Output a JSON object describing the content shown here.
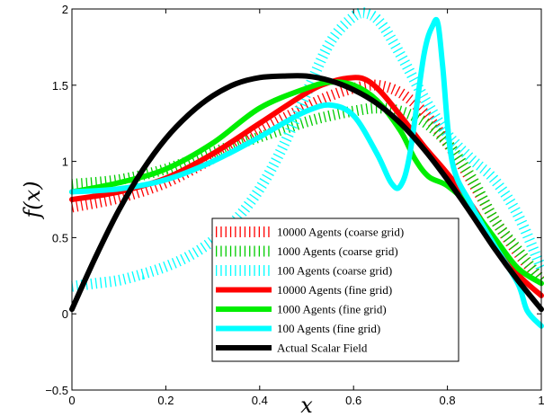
{
  "chart_data": {
    "type": "line",
    "title": "",
    "xlabel": "x",
    "ylabel": "f(x)",
    "xlim": [
      0,
      1
    ],
    "ylim": [
      -0.5,
      2
    ],
    "grid": false,
    "legend_placement": "lower-right",
    "x_ticks": [
      "0",
      "0.2",
      "0.4",
      "0.6",
      "0.8",
      "1"
    ],
    "y_ticks": [
      "−0.5",
      "0",
      "0.5",
      "1",
      "1.5",
      "2"
    ],
    "series": [
      {
        "name": "10000 Agents (coarse grid)",
        "color": "#ff0000",
        "style": "dotted",
        "x": [
          0,
          0.1,
          0.2,
          0.3,
          0.4,
          0.5,
          0.55,
          0.6,
          0.65,
          0.7,
          0.75,
          0.8,
          0.85,
          0.9,
          0.95,
          1.0
        ],
        "y": [
          0.7,
          0.76,
          0.86,
          1.02,
          1.2,
          1.36,
          1.43,
          1.48,
          1.5,
          1.45,
          1.32,
          1.12,
          0.88,
          0.62,
          0.4,
          0.22
        ]
      },
      {
        "name": "1000 Agents (coarse grid)",
        "color": "#00cc00",
        "style": "dotted",
        "x": [
          0,
          0.1,
          0.2,
          0.3,
          0.4,
          0.5,
          0.55,
          0.6,
          0.65,
          0.7,
          0.75,
          0.8,
          0.85,
          0.9,
          0.95,
          1.0
        ],
        "y": [
          0.85,
          0.88,
          0.95,
          1.06,
          1.16,
          1.26,
          1.3,
          1.33,
          1.35,
          1.33,
          1.26,
          1.12,
          0.9,
          0.62,
          0.42,
          0.22
        ]
      },
      {
        "name": "100 Agents (coarse grid)",
        "color": "#00ffff",
        "style": "dotted",
        "x": [
          0,
          0.05,
          0.1,
          0.15,
          0.2,
          0.25,
          0.3,
          0.35,
          0.4,
          0.45,
          0.5,
          0.55,
          0.6,
          0.63,
          0.66,
          0.7,
          0.75,
          0.8,
          0.85,
          0.9,
          0.95,
          1.0
        ],
        "y": [
          0.18,
          0.2,
          0.22,
          0.26,
          0.31,
          0.38,
          0.48,
          0.62,
          0.82,
          1.1,
          1.45,
          1.78,
          1.95,
          1.97,
          1.9,
          1.7,
          1.42,
          1.18,
          1.02,
          0.88,
          0.65,
          0.3
        ]
      },
      {
        "name": "10000 Agents (fine grid)",
        "color": "#ff0000",
        "style": "solid",
        "x": [
          0,
          0.1,
          0.2,
          0.3,
          0.4,
          0.5,
          0.55,
          0.6,
          0.63,
          0.66,
          0.7,
          0.75,
          0.8,
          0.85,
          0.9,
          0.95,
          1.0
        ],
        "y": [
          0.75,
          0.8,
          0.89,
          1.05,
          1.25,
          1.45,
          1.52,
          1.55,
          1.53,
          1.45,
          1.3,
          1.1,
          0.92,
          0.72,
          0.48,
          0.26,
          0.12
        ]
      },
      {
        "name": "1000 Agents (fine grid)",
        "color": "#00ee00",
        "style": "solid",
        "x": [
          0,
          0.1,
          0.2,
          0.3,
          0.4,
          0.5,
          0.55,
          0.6,
          0.65,
          0.7,
          0.73,
          0.76,
          0.8,
          0.85,
          0.9,
          0.95,
          1.0
        ],
        "y": [
          0.8,
          0.86,
          0.95,
          1.12,
          1.35,
          1.48,
          1.52,
          1.5,
          1.4,
          1.2,
          1.02,
          0.9,
          0.84,
          0.7,
          0.5,
          0.3,
          0.2
        ]
      },
      {
        "name": "100 Agents (fine grid)",
        "color": "#00ffff",
        "style": "solid",
        "x": [
          0,
          0.1,
          0.2,
          0.3,
          0.4,
          0.45,
          0.5,
          0.55,
          0.6,
          0.65,
          0.68,
          0.7,
          0.72,
          0.75,
          0.77,
          0.78,
          0.79,
          0.81,
          0.85,
          0.9,
          0.95,
          0.97,
          1.0
        ],
        "y": [
          0.8,
          0.82,
          0.88,
          1.0,
          1.16,
          1.25,
          1.33,
          1.37,
          1.3,
          1.05,
          0.86,
          0.84,
          1.05,
          1.7,
          1.9,
          1.9,
          1.62,
          1.0,
          0.72,
          0.45,
          0.2,
          0.02,
          -0.08
        ]
      },
      {
        "name": "Actual Scalar Field",
        "color": "#000000",
        "style": "solid",
        "x": [
          0,
          0.05,
          0.1,
          0.15,
          0.2,
          0.25,
          0.3,
          0.35,
          0.4,
          0.45,
          0.5,
          0.55,
          0.6,
          0.65,
          0.7,
          0.75,
          0.8,
          0.85,
          0.9,
          0.95,
          1.0
        ],
        "y": [
          0.03,
          0.37,
          0.68,
          0.94,
          1.15,
          1.31,
          1.43,
          1.51,
          1.55,
          1.56,
          1.56,
          1.53,
          1.47,
          1.38,
          1.25,
          1.08,
          0.88,
          0.66,
          0.43,
          0.22,
          0.03
        ]
      }
    ]
  }
}
